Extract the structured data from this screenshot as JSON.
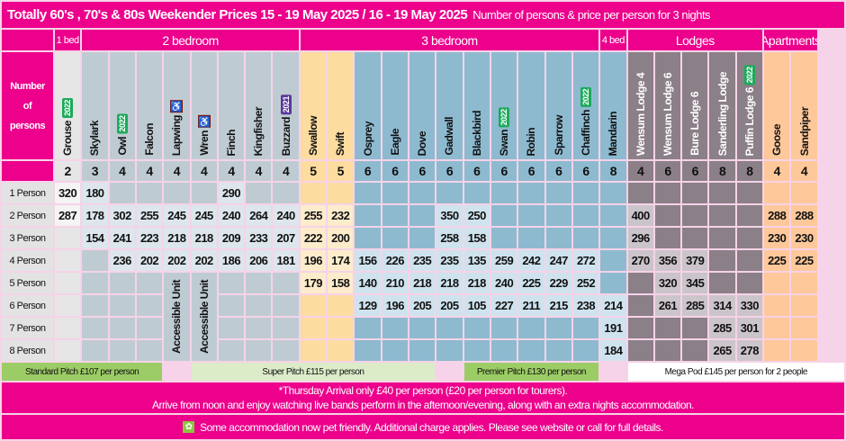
{
  "title": "Totally 60's , 70's  &  80s Weekender  Prices 15 - 19 May 2025 / 16 - 19 May 2025",
  "subtitle": "Number of persons & price per person for 3 nights",
  "row_header": "Number of persons",
  "groups": [
    {
      "label": "1 bed",
      "span": 1
    },
    {
      "label": "2 bedroom",
      "span": 8
    },
    {
      "label": "3 bedroom",
      "span": 11
    },
    {
      "label": "4 bed",
      "span": 1
    },
    {
      "label": "Lodges",
      "span": 5
    },
    {
      "label": "Apartments",
      "span": 2
    }
  ],
  "columns": [
    {
      "name": "Grouse",
      "capacity": "2",
      "badge": "2022"
    },
    {
      "name": "Skylark",
      "capacity": "3"
    },
    {
      "name": "Owl",
      "capacity": "4",
      "badge": "2022"
    },
    {
      "name": "Falcon",
      "capacity": "4"
    },
    {
      "name": "Lapwing",
      "capacity": "4",
      "accessible": true
    },
    {
      "name": "Wren",
      "capacity": "4",
      "accessible": true
    },
    {
      "name": "Finch",
      "capacity": "4"
    },
    {
      "name": "Kingfisher",
      "capacity": "4"
    },
    {
      "name": "Buzzard",
      "capacity": "4",
      "badge": "2021"
    },
    {
      "name": "Swallow",
      "capacity": "5"
    },
    {
      "name": "Swift",
      "capacity": "5"
    },
    {
      "name": "Osprey",
      "capacity": "6"
    },
    {
      "name": "Eagle",
      "capacity": "6"
    },
    {
      "name": "Dove",
      "capacity": "6"
    },
    {
      "name": "Gadwall",
      "capacity": "6"
    },
    {
      "name": "Blackbird",
      "capacity": "6"
    },
    {
      "name": "Swan",
      "capacity": "6",
      "badge": "2022"
    },
    {
      "name": "Robin",
      "capacity": "6"
    },
    {
      "name": "Sparrow",
      "capacity": "6"
    },
    {
      "name": "Chaffinch",
      "capacity": "6",
      "badge": "2022"
    },
    {
      "name": "Mandarin",
      "capacity": "8"
    },
    {
      "name": "Wensum Lodge 4",
      "capacity": "4"
    },
    {
      "name": "Wensum Lodge 6",
      "capacity": "6"
    },
    {
      "name": "Bure Lodge 6",
      "capacity": "6"
    },
    {
      "name": "Sanderling Lodge",
      "capacity": "8"
    },
    {
      "name": "Puffin Lodge 6",
      "capacity": "8",
      "badge": "2022"
    },
    {
      "name": "Goose",
      "capacity": "4"
    },
    {
      "name": "Sandpiper",
      "capacity": "4"
    }
  ],
  "rows": [
    {
      "label": "1 Person",
      "values": [
        "320",
        "180",
        null,
        null,
        null,
        null,
        "290",
        null,
        null,
        null,
        null,
        null,
        null,
        null,
        null,
        null,
        null,
        null,
        null,
        null,
        null,
        null,
        null,
        null,
        null,
        null,
        null,
        null
      ]
    },
    {
      "label": "2 Person",
      "values": [
        "287",
        "178",
        "302",
        "255",
        "245",
        "245",
        "240",
        "264",
        "240",
        "255",
        "232",
        null,
        null,
        null,
        "350",
        "250",
        null,
        null,
        null,
        null,
        null,
        "400",
        null,
        null,
        null,
        null,
        "288",
        "288"
      ]
    },
    {
      "label": "3 Person",
      "values": [
        null,
        "154",
        "241",
        "223",
        "218",
        "218",
        "209",
        "233",
        "207",
        "222",
        "200",
        null,
        null,
        null,
        "258",
        "158",
        null,
        null,
        null,
        null,
        null,
        "296",
        null,
        null,
        null,
        null,
        "230",
        "230"
      ]
    },
    {
      "label": "4 Person",
      "values": [
        null,
        null,
        "236",
        "202",
        "202",
        "202",
        "186",
        "206",
        "181",
        "196",
        "174",
        "156",
        "226",
        "235",
        "235",
        "135",
        "259",
        "242",
        "247",
        "272",
        null,
        "270",
        "356",
        "379",
        null,
        null,
        "225",
        "225"
      ]
    },
    {
      "label": "5 Person",
      "values": [
        null,
        null,
        null,
        null,
        null,
        null,
        null,
        null,
        null,
        "179",
        "158",
        "140",
        "210",
        "218",
        "218",
        "218",
        "240",
        "225",
        "229",
        "252",
        null,
        null,
        "320",
        "345",
        null,
        null,
        null,
        null
      ]
    },
    {
      "label": "6 Person",
      "values": [
        null,
        null,
        null,
        null,
        null,
        null,
        null,
        null,
        null,
        null,
        null,
        "129",
        "196",
        "205",
        "205",
        "105",
        "227",
        "211",
        "215",
        "238",
        "214",
        null,
        "261",
        "285",
        "314",
        "330",
        null,
        null
      ]
    },
    {
      "label": "7 Person",
      "values": [
        null,
        null,
        null,
        null,
        null,
        null,
        null,
        null,
        null,
        null,
        null,
        null,
        null,
        null,
        null,
        null,
        null,
        null,
        null,
        null,
        "191",
        null,
        null,
        null,
        "285",
        "301",
        null,
        null
      ]
    },
    {
      "label": "8 Person",
      "values": [
        null,
        null,
        null,
        null,
        null,
        null,
        null,
        null,
        null,
        null,
        null,
        null,
        null,
        null,
        null,
        null,
        null,
        null,
        null,
        null,
        "184",
        null,
        null,
        null,
        "265",
        "278",
        null,
        null
      ]
    }
  ],
  "accessible_label": "Accessible Unit",
  "pitches": [
    {
      "label": "Standard Pitch £107 per person",
      "color": "#9ccc65"
    },
    {
      "label": "Super Pitch £115 per person",
      "color": "#dcebc8"
    },
    {
      "label": "Premier Pitch £130 per person",
      "color": "#9ccc65"
    },
    {
      "label": "Mega Pod £145 per person for 2 people",
      "color": "#ffffff"
    }
  ],
  "note_line1": "*Thursday Arrival only £40 per person (£20 per person for tourers).",
  "note_line2": "Arrive from noon and enjoy watching live bands  perform in the afternoon/evening, along with an extra nights accommodation.",
  "pet_note": "Some accommodation now pet friendly.  Additional charge applies.  Please see website or call for full details.",
  "colors": {
    "brand": "#ec008c",
    "badge_2022": "#1aaa5a",
    "badge_2021": "#5b3a9b"
  }
}
